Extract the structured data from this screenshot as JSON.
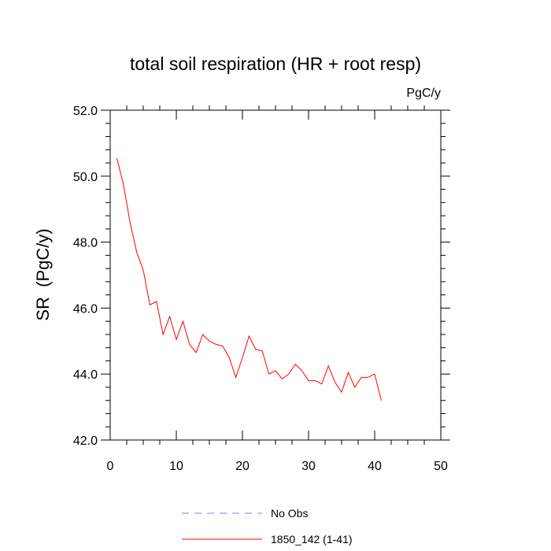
{
  "chart_data": {
    "type": "line",
    "title": "total soil respiration (HR + root resp)",
    "units": "PgC/y",
    "xlabel": "",
    "ylabel": "SR  (PgC/y)",
    "xlim": [
      0,
      50
    ],
    "ylim": [
      42.0,
      52.0
    ],
    "x_ticks": [
      0,
      10,
      20,
      30,
      40,
      50
    ],
    "x_tick_labels": [
      "0",
      "10",
      "20",
      "30",
      "40",
      "50"
    ],
    "y_ticks": [
      42.0,
      44.0,
      46.0,
      48.0,
      50.0,
      52.0
    ],
    "y_tick_labels": [
      "42.0",
      "44.0",
      "46.0",
      "48.0",
      "50.0",
      "52.0"
    ],
    "grid": false,
    "legend_position": "bottom",
    "series": [
      {
        "name": "No Obs",
        "color": "#8080ff",
        "dashed": true,
        "x": [],
        "values": []
      },
      {
        "name": "1850_142 (1-41)",
        "color": "#ff0000",
        "dashed": false,
        "x": [
          1,
          2,
          3,
          4,
          5,
          6,
          7,
          8,
          9,
          10,
          11,
          12,
          13,
          14,
          15,
          16,
          17,
          18,
          19,
          20,
          21,
          22,
          23,
          24,
          25,
          26,
          27,
          28,
          29,
          30,
          31,
          32,
          33,
          34,
          35,
          36,
          37,
          38,
          39,
          40,
          41
        ],
        "values": [
          50.55,
          49.75,
          48.6,
          47.7,
          47.15,
          46.1,
          46.2,
          45.2,
          45.75,
          45.05,
          45.6,
          44.9,
          44.65,
          45.2,
          45.0,
          44.9,
          44.85,
          44.5,
          43.9,
          44.5,
          45.15,
          44.75,
          44.7,
          44.0,
          44.1,
          43.85,
          44.0,
          44.3,
          44.1,
          43.8,
          43.8,
          43.7,
          44.25,
          43.75,
          43.45,
          44.05,
          43.6,
          43.9,
          43.9,
          44.0,
          43.2
        ]
      }
    ]
  }
}
